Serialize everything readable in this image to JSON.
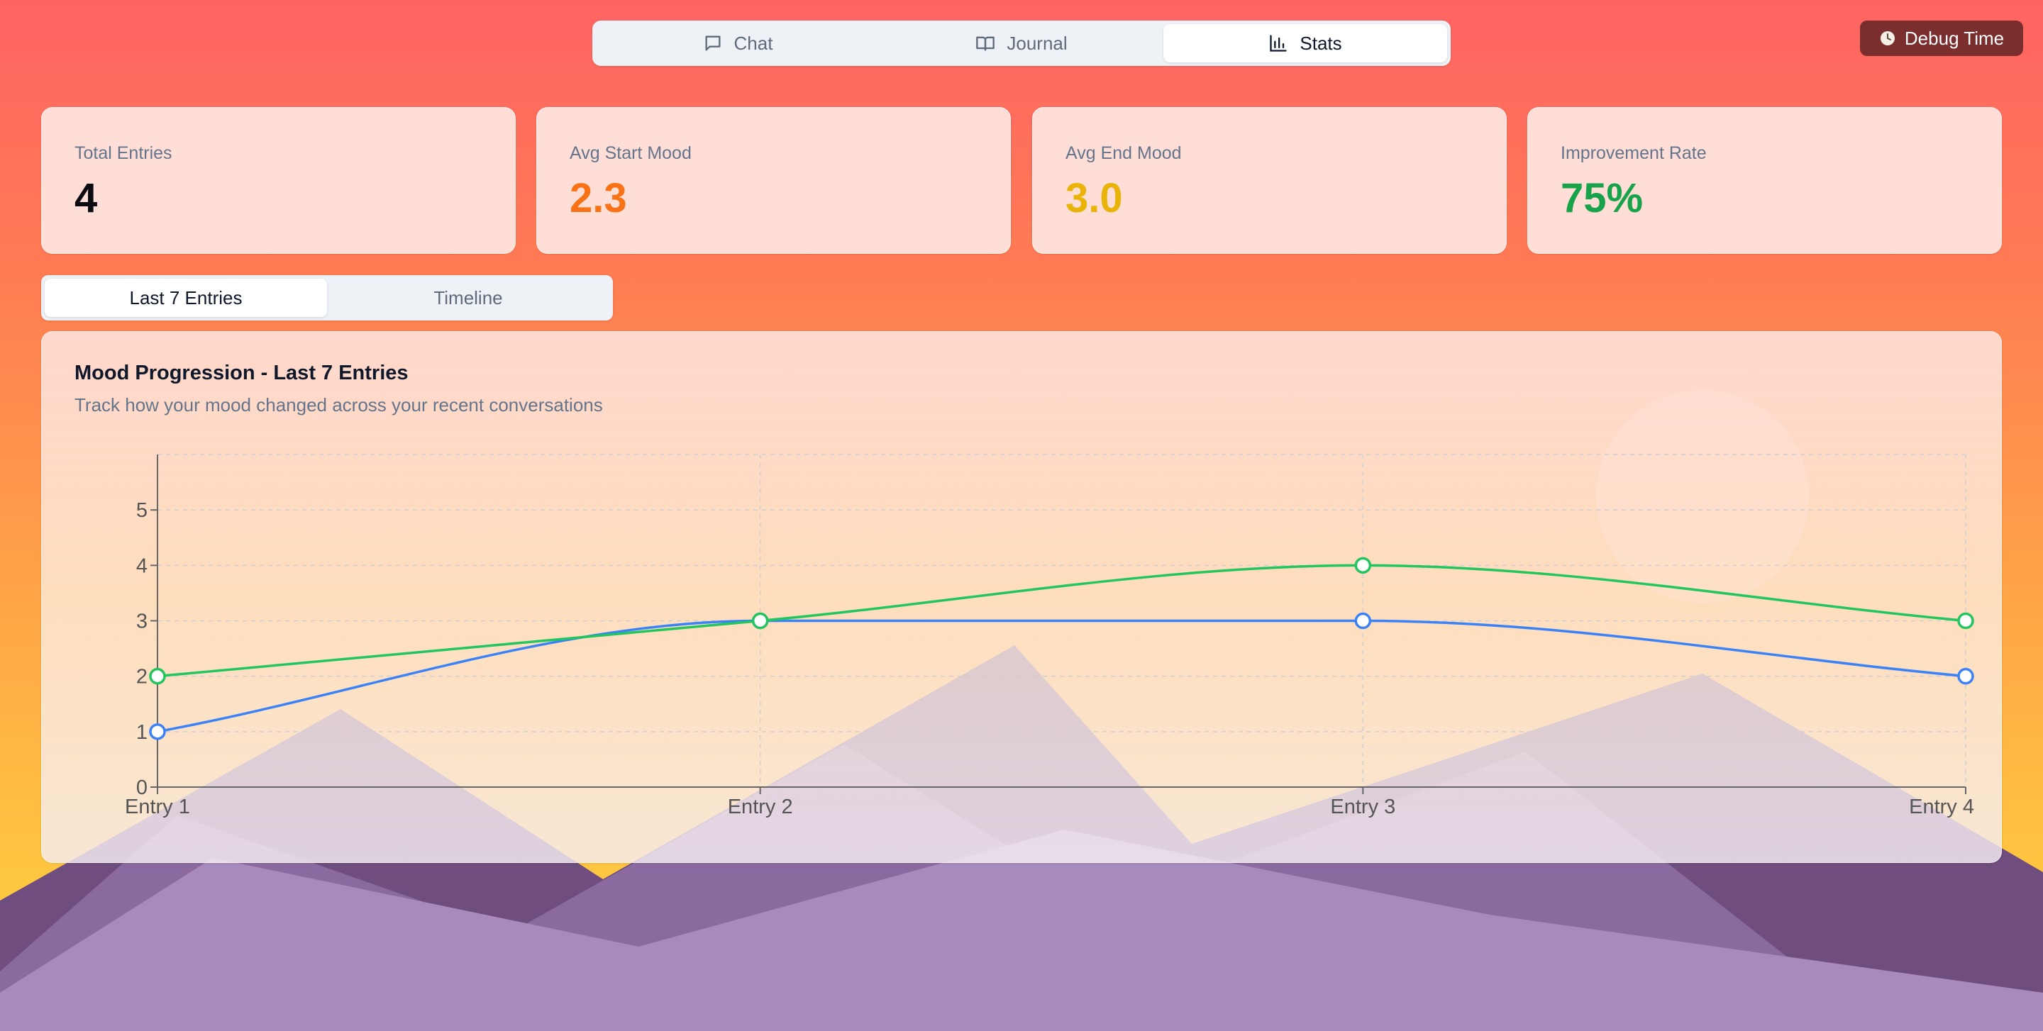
{
  "nav": {
    "tabs": [
      {
        "label": "Chat",
        "icon": "chat-bubble-icon"
      },
      {
        "label": "Journal",
        "icon": "book-open-icon"
      },
      {
        "label": "Stats",
        "icon": "bar-chart-icon"
      }
    ],
    "active": "Stats"
  },
  "debug": {
    "label": "Debug Time",
    "icon": "clock-icon"
  },
  "stats": [
    {
      "label": "Total Entries",
      "value": "4",
      "color": "#0b0b12"
    },
    {
      "label": "Avg Start Mood",
      "value": "2.3",
      "color": "#f97316"
    },
    {
      "label": "Avg End Mood",
      "value": "3.0",
      "color": "#eab308"
    },
    {
      "label": "Improvement Rate",
      "value": "75%",
      "color": "#16a34a"
    }
  ],
  "range_tabs": {
    "items": [
      "Last 7 Entries",
      "Timeline"
    ],
    "active": "Last 7 Entries"
  },
  "chart": {
    "title": "Mood Progression - Last 7 Entries",
    "subtitle": "Track how your mood changed across your recent conversations"
  },
  "chart_data": {
    "type": "line",
    "categories": [
      "Entry 1",
      "Entry 2",
      "Entry 3",
      "Entry 4"
    ],
    "series": [
      {
        "name": "",
        "color": "#3b82f6",
        "values": [
          1,
          3,
          3,
          2
        ]
      },
      {
        "name": "",
        "color": "#22c55e",
        "values": [
          2,
          3,
          4,
          3
        ]
      }
    ],
    "ylim": [
      0,
      6
    ],
    "yticks": [
      "0",
      "1",
      "2",
      "3",
      "4",
      "5"
    ],
    "grid": true,
    "curve": "smooth"
  }
}
